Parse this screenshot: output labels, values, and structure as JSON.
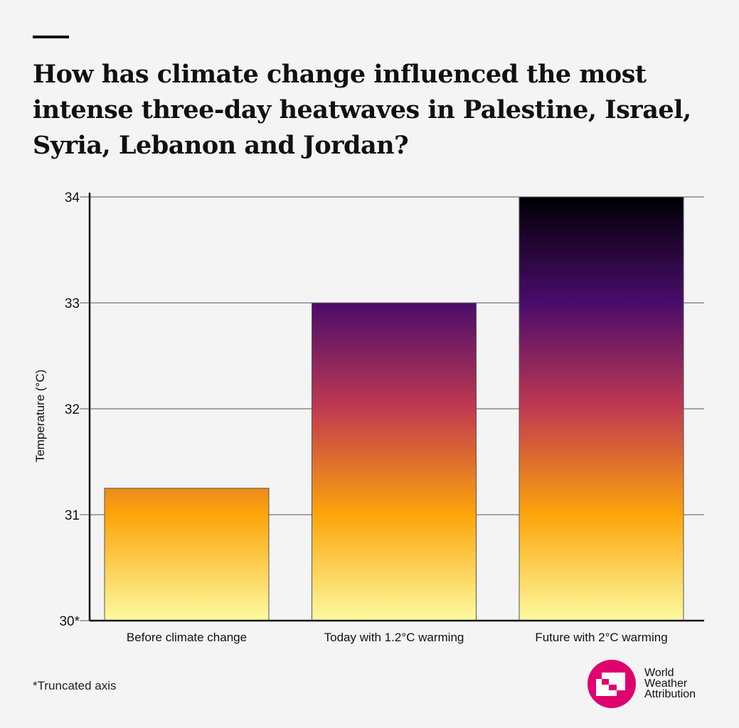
{
  "title": "How has climate change influenced the most intense three-day heatwaves in Palestine, Israel, Syria, Lebanon and Jordan?",
  "footnote": "*Truncated axis",
  "logo": {
    "lines": [
      "World",
      "Weather",
      "Attribution"
    ],
    "color": "#e0006e"
  },
  "chart_data": {
    "type": "bar",
    "title": "How has climate change influenced the most intense three-day heatwaves in Palestine, Israel, Syria, Lebanon and Jordan?",
    "categories": [
      "Before climate change",
      "Today with 1.2°C warming",
      "Future with 2°C warming"
    ],
    "values": [
      31.25,
      33.0,
      34.0
    ],
    "xlabel": "",
    "ylabel": "Temperature (°C)",
    "ylim": [
      30,
      34
    ],
    "yticks": [
      30,
      31,
      32,
      33,
      34
    ],
    "ytick_labels": [
      "30*",
      "31",
      "32",
      "33",
      "34"
    ],
    "grid": "horizontal",
    "colormap": "inferno (by temperature)",
    "gradient_stops": {
      "30": "#fcfba0",
      "30.5": "#f6d645",
      "31": "#fca50a",
      "31.5": "#e8602a",
      "32": "#c13a50",
      "32.5": "#8a226a",
      "33": "#4a0c6b",
      "33.5": "#1b0c3f",
      "34": "#000004"
    }
  }
}
